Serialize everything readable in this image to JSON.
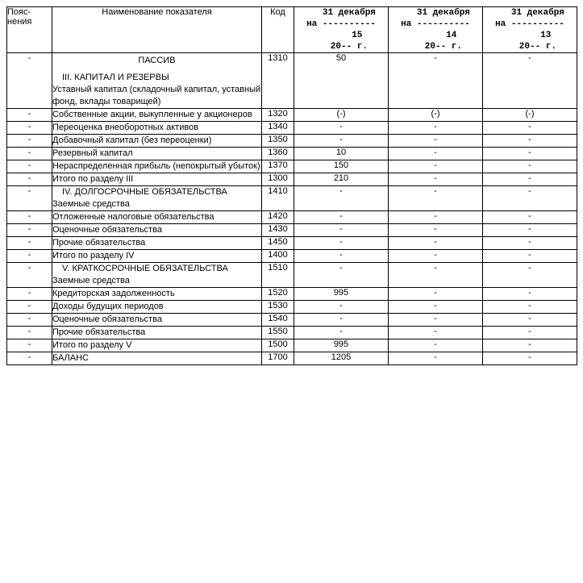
{
  "columns": {
    "expl": "Пояс-\nнения",
    "name": "Наименование показателя",
    "code": "Код",
    "dates": [
      {
        "day_month": "31 декабря",
        "year_short": "15",
        "century": "20",
        "suffix": "г."
      },
      {
        "day_month": "31 декабря",
        "year_short": "14",
        "century": "20",
        "suffix": "г."
      },
      {
        "day_month": "31 декабря",
        "year_short": "13",
        "century": "20",
        "suffix": "г."
      }
    ],
    "na_label": "на",
    "dash_line": "----------"
  },
  "rows": [
    {
      "expl": "-",
      "name_lines": [
        {
          "text": "ПАССИВ",
          "style": "section-title"
        },
        {
          "text": "III. КАПИТАЛ И РЕЗЕРВЫ",
          "style": "subsection"
        },
        {
          "text": "Уставный капитал (складочный капитал, уставный фонд, вклады товарищей)",
          "style": "plain-line"
        }
      ],
      "code": "1310",
      "y1": "50",
      "y2": "-",
      "y3": "-"
    },
    {
      "expl": "-",
      "name_lines": [
        {
          "text": "Собственные акции, выкупленные у акционеров",
          "style": "plain-line"
        }
      ],
      "code": "1320",
      "y1": "(-)",
      "y2": "(-)",
      "y3": "(-)"
    },
    {
      "expl": "-",
      "name_lines": [
        {
          "text": "Переоценка внеоборотных активов",
          "style": "plain-line"
        }
      ],
      "code": "1340",
      "y1": "-",
      "y2": "-",
      "y3": "-"
    },
    {
      "expl": "-",
      "name_lines": [
        {
          "text": "Добавочный капитал (без переоценки)",
          "style": "plain-line"
        }
      ],
      "code": "1350",
      "y1": "-",
      "y2": "-",
      "y3": "-"
    },
    {
      "expl": "-",
      "name_lines": [
        {
          "text": "Резервный капитал",
          "style": "plain-line"
        }
      ],
      "code": "1360",
      "y1": "10",
      "y2": "-",
      "y3": "-"
    },
    {
      "expl": "-",
      "name_lines": [
        {
          "text": "Нераспределенная прибыль (непокрытый убыток)",
          "style": "plain-line"
        }
      ],
      "code": "1370",
      "y1": "150",
      "y2": "-",
      "y3": "-"
    },
    {
      "expl": "-",
      "name_lines": [
        {
          "text": "Итого по разделу III",
          "style": "plain-line"
        }
      ],
      "code": "1300",
      "y1": "210",
      "y2": "-",
      "y3": "-"
    },
    {
      "expl": "-",
      "name_lines": [
        {
          "text": "IV. ДОЛГОСРОЧНЫЕ ОБЯЗАТЕЛЬСТВА",
          "style": "subsection"
        },
        {
          "text": "Заемные средства",
          "style": "plain-line"
        }
      ],
      "code": "1410",
      "y1": "-",
      "y2": "-",
      "y3": "-"
    },
    {
      "expl": "-",
      "name_lines": [
        {
          "text": "Отложенные налоговые обязательства",
          "style": "plain-line"
        }
      ],
      "code": "1420",
      "y1": "-",
      "y2": "-",
      "y3": "-"
    },
    {
      "expl": "-",
      "name_lines": [
        {
          "text": "Оценочные обязательства",
          "style": "plain-line"
        }
      ],
      "code": "1430",
      "y1": "-",
      "y2": "-",
      "y3": "-"
    },
    {
      "expl": "-",
      "name_lines": [
        {
          "text": "Прочие обязательства",
          "style": "plain-line"
        }
      ],
      "code": "1450",
      "y1": "-",
      "y2": "-",
      "y3": "-"
    },
    {
      "expl": "-",
      "name_lines": [
        {
          "text": "Итого по разделу IV",
          "style": "plain-line"
        }
      ],
      "code": "1400",
      "y1": "-",
      "y2": "-",
      "y3": "-"
    },
    {
      "expl": "-",
      "name_lines": [
        {
          "text": "V. КРАТКОСРОЧНЫЕ ОБЯЗАТЕЛЬСТВА",
          "style": "subsection"
        },
        {
          "text": "Заемные средства",
          "style": "plain-line"
        }
      ],
      "code": "1510",
      "y1": "-",
      "y2": "-",
      "y3": "-"
    },
    {
      "expl": "-",
      "name_lines": [
        {
          "text": "Кредиторская задолженность",
          "style": "plain-line"
        }
      ],
      "code": "1520",
      "y1": "995",
      "y2": "-",
      "y3": "-"
    },
    {
      "expl": "-",
      "name_lines": [
        {
          "text": "Доходы будущих периодов",
          "style": "plain-line"
        }
      ],
      "code": "1530",
      "y1": "-",
      "y2": "-",
      "y3": "-"
    },
    {
      "expl": "-",
      "name_lines": [
        {
          "text": "Оценочные обязательства",
          "style": "plain-line"
        }
      ],
      "code": "1540",
      "y1": "-",
      "y2": "-",
      "y3": "-"
    },
    {
      "expl": "-",
      "name_lines": [
        {
          "text": "Прочие обязательства",
          "style": "plain-line"
        }
      ],
      "code": "1550",
      "y1": "-",
      "y2": "-",
      "y3": "-"
    },
    {
      "expl": "-",
      "name_lines": [
        {
          "text": "Итого по разделу V",
          "style": "plain-line"
        }
      ],
      "code": "1500",
      "y1": "995",
      "y2": "-",
      "y3": "-"
    },
    {
      "expl": "-",
      "name_lines": [
        {
          "text": "БАЛАНС",
          "style": "plain-line"
        }
      ],
      "code": "1700",
      "y1": "1205",
      "y2": "-",
      "y3": "-"
    }
  ]
}
